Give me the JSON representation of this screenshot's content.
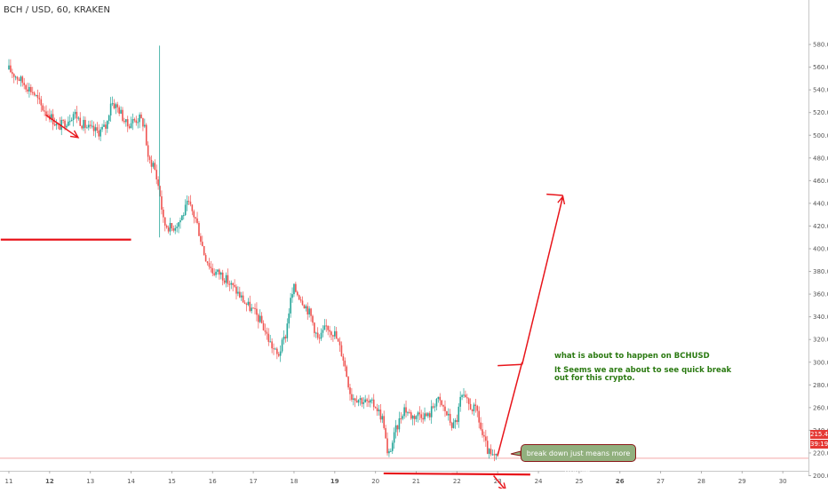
{
  "header": {
    "symbol": "BCH / USD, 60, KRAKEN"
  },
  "chart_data": {
    "type": "candlestick",
    "title": "BCH / USD, 60, KRAKEN",
    "x_ticks": [
      "11",
      "12",
      "13",
      "14",
      "15",
      "16",
      "17",
      "18",
      "19",
      "20",
      "21",
      "22",
      "23",
      "24",
      "25",
      "26",
      "27",
      "28",
      "29",
      "30"
    ],
    "y_ticks": [
      580,
      560,
      540,
      520,
      500,
      480,
      460,
      440,
      420,
      400,
      380,
      360,
      340,
      320,
      300,
      280,
      260,
      240,
      220,
      200
    ],
    "ylim": [
      195,
      590
    ],
    "grid": false,
    "current_price": {
      "label": "215.4",
      "value": 215.4,
      "countdown": "39:19"
    },
    "price_path": [
      {
        "day": 11.0,
        "price": 558
      },
      {
        "day": 11.3,
        "price": 548
      },
      {
        "day": 11.6,
        "price": 538
      },
      {
        "day": 11.8,
        "price": 525
      },
      {
        "day": 12.0,
        "price": 518
      },
      {
        "day": 12.2,
        "price": 507
      },
      {
        "day": 12.4,
        "price": 512
      },
      {
        "day": 12.6,
        "price": 520
      },
      {
        "day": 12.8,
        "price": 510
      },
      {
        "day": 13.0,
        "price": 505
      },
      {
        "day": 13.2,
        "price": 503
      },
      {
        "day": 13.4,
        "price": 508
      },
      {
        "day": 13.5,
        "price": 530
      },
      {
        "day": 13.7,
        "price": 523
      },
      {
        "day": 13.9,
        "price": 508
      },
      {
        "day": 14.0,
        "price": 512
      },
      {
        "day": 14.2,
        "price": 515
      },
      {
        "day": 14.35,
        "price": 508
      },
      {
        "day": 14.4,
        "price": 478
      },
      {
        "day": 14.55,
        "price": 475
      },
      {
        "day": 14.7,
        "price": 450
      },
      {
        "day": 14.8,
        "price": 422
      },
      {
        "day": 15.0,
        "price": 418
      },
      {
        "day": 15.2,
        "price": 425
      },
      {
        "day": 15.4,
        "price": 440
      },
      {
        "day": 15.6,
        "price": 425
      },
      {
        "day": 15.8,
        "price": 395
      },
      {
        "day": 16.0,
        "price": 380
      },
      {
        "day": 16.2,
        "price": 378
      },
      {
        "day": 16.4,
        "price": 370
      },
      {
        "day": 16.6,
        "price": 362
      },
      {
        "day": 16.8,
        "price": 352
      },
      {
        "day": 17.0,
        "price": 345
      },
      {
        "day": 17.2,
        "price": 335
      },
      {
        "day": 17.4,
        "price": 318
      },
      {
        "day": 17.6,
        "price": 305
      },
      {
        "day": 17.8,
        "price": 325
      },
      {
        "day": 17.9,
        "price": 352
      },
      {
        "day": 18.0,
        "price": 365
      },
      {
        "day": 18.2,
        "price": 355
      },
      {
        "day": 18.4,
        "price": 342
      },
      {
        "day": 18.6,
        "price": 318
      },
      {
        "day": 18.8,
        "price": 332
      },
      {
        "day": 19.0,
        "price": 325
      },
      {
        "day": 19.2,
        "price": 305
      },
      {
        "day": 19.4,
        "price": 270
      },
      {
        "day": 19.6,
        "price": 268
      },
      {
        "day": 19.8,
        "price": 264
      },
      {
        "day": 20.0,
        "price": 262
      },
      {
        "day": 20.2,
        "price": 248
      },
      {
        "day": 20.3,
        "price": 215
      },
      {
        "day": 20.5,
        "price": 240
      },
      {
        "day": 20.7,
        "price": 260
      },
      {
        "day": 20.9,
        "price": 252
      },
      {
        "day": 21.1,
        "price": 255
      },
      {
        "day": 21.3,
        "price": 252
      },
      {
        "day": 21.5,
        "price": 268
      },
      {
        "day": 21.7,
        "price": 258
      },
      {
        "day": 21.9,
        "price": 243
      },
      {
        "day": 22.0,
        "price": 250
      },
      {
        "day": 22.1,
        "price": 270
      },
      {
        "day": 22.3,
        "price": 262
      },
      {
        "day": 22.5,
        "price": 256
      },
      {
        "day": 22.6,
        "price": 238
      },
      {
        "day": 22.75,
        "price": 222
      },
      {
        "day": 22.85,
        "price": 216
      },
      {
        "day": 23.0,
        "price": 215.4
      }
    ],
    "drawings": [
      {
        "kind": "segment",
        "from": {
          "day": 10.8,
          "price": 408
        },
        "to": {
          "day": 14.0,
          "price": 408
        }
      },
      {
        "kind": "arrow",
        "from": {
          "day": 11.9,
          "price": 518
        },
        "to": {
          "day": 12.7,
          "price": 498
        }
      },
      {
        "kind": "segment",
        "from": {
          "day": 20.2,
          "price": 202
        },
        "to": {
          "day": 23.8,
          "price": 201
        }
      },
      {
        "kind": "segment",
        "from": {
          "day": 23.0,
          "price": 218
        },
        "to": {
          "day": 23.6,
          "price": 300
        }
      },
      {
        "kind": "segment",
        "from": {
          "day": 23.0,
          "price": 297
        },
        "to": {
          "day": 23.6,
          "price": 298
        }
      },
      {
        "kind": "arrow",
        "from": {
          "day": 23.6,
          "price": 298
        },
        "to": {
          "day": 24.6,
          "price": 446
        }
      },
      {
        "kind": "segment",
        "from": {
          "day": 24.2,
          "price": 448
        },
        "to": {
          "day": 24.6,
          "price": 447
        }
      },
      {
        "kind": "arrow",
        "from": {
          "day": 22.9,
          "price": 200
        },
        "to": {
          "day": 23.2,
          "price": 187
        }
      }
    ],
    "annotations": [
      {
        "id": "title",
        "text": "what is about to happen on BCHUSD"
      },
      {
        "id": "line1",
        "text": "It Seems we are about to see quick break"
      },
      {
        "id": "line2",
        "text": "out for this crypto."
      },
      {
        "id": "callout",
        "text": "break down just means more trouble."
      }
    ]
  },
  "colors": {
    "up": "#26a69a",
    "down": "#ef5350",
    "drawing": "#e8151b",
    "annotation_text": "#2b7a12",
    "callout_fill": "#91b07e",
    "price_line": "#f3a6a6",
    "price_badge": "#e53935"
  }
}
